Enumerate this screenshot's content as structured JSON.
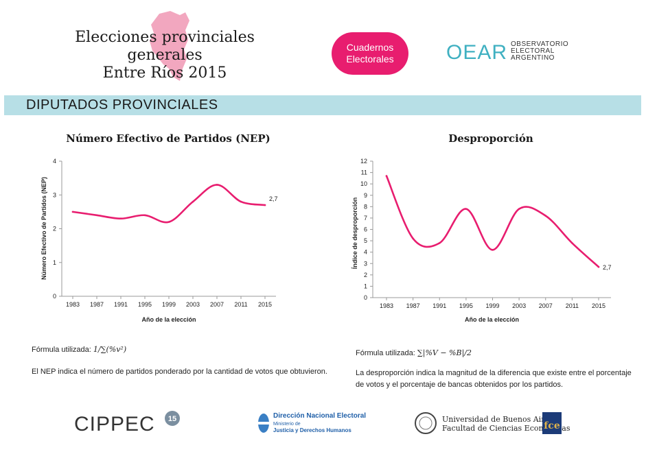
{
  "header": {
    "title_line1": "Elecciones provinciales generales",
    "title_line2": "Entre Ríos 2015",
    "badge_line1": "Cuadernos",
    "badge_line2": "Electorales",
    "oear_logo": "OEAR",
    "oear_line1": "OBSERVATORIO",
    "oear_line2": "ELECTORAL",
    "oear_line3": "ARGENTINO"
  },
  "section": {
    "title": "DIPUTADOS PROVINCIALES"
  },
  "colors": {
    "accent": "#e81d6f",
    "band": "#b7dfe6",
    "teal": "#3fb0c1"
  },
  "chart_data": [
    {
      "type": "line",
      "title": "Número Efectivo de Partidos (NEP)",
      "xlabel": "Año de la elección",
      "ylabel": "Número Efectivo de Partidos (NEP)",
      "ylim": [
        0,
        4
      ],
      "yticks": [
        0,
        1,
        2,
        3,
        4
      ],
      "categories": [
        "1983",
        "1987",
        "1991",
        "1995",
        "1999",
        "2003",
        "2007",
        "2011",
        "2015"
      ],
      "values": [
        2.5,
        2.4,
        2.3,
        2.4,
        2.2,
        2.8,
        3.3,
        2.8,
        2.7
      ],
      "end_label": "2,7",
      "grid": false
    },
    {
      "type": "line",
      "title": "Desproporción",
      "xlabel": "Año de la elección",
      "ylabel": "Índice de desproporción",
      "ylim": [
        0,
        12
      ],
      "yticks": [
        0,
        1,
        2,
        3,
        4,
        5,
        6,
        7,
        8,
        9,
        10,
        11,
        12
      ],
      "categories": [
        "1983",
        "1987",
        "1991",
        "1995",
        "1999",
        "2003",
        "2007",
        "2011",
        "2015"
      ],
      "values": [
        10.7,
        5.2,
        4.8,
        7.8,
        4.2,
        7.8,
        7.2,
        4.8,
        2.7
      ],
      "end_label": "2,7",
      "grid": false
    }
  ],
  "left_notes": {
    "formula_prefix": "Fórmula utilizada:",
    "formula": "1/∑(%v²)",
    "description": "El NEP indica el número de partidos ponderado por la cantidad de votos que obtuvieron."
  },
  "right_notes": {
    "formula_prefix": "Fórmula utilizada:",
    "formula": "∑|%V − %B|/2",
    "description": "La desproporción indica la magnitud de la diferencia que existe entre el porcentaje de votos y el porcentaje de bancas obtenidos por los partidos."
  },
  "footer": {
    "cippec": "CIPPEC",
    "cippec_badge": "15",
    "dne_title": "Dirección Nacional Electoral",
    "dne_sub1": "Ministerio de",
    "dne_sub2": "Justicia y Derechos Humanos",
    "uba_line1": "Universidad de Buenos Aires",
    "uba_line2": "Facultad de Ciencias Económicas",
    "fce": "fce"
  }
}
